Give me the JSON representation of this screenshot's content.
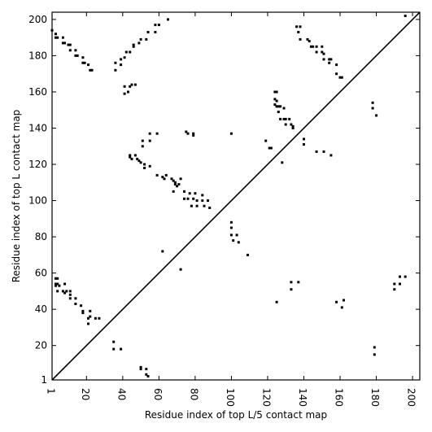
{
  "chart_data": {
    "type": "scatter",
    "xlabel": "Residue index of top L/5 contact map",
    "ylabel": "Residue index of top L contact map",
    "xlim": [
      1,
      204
    ],
    "ylim": [
      1,
      204
    ],
    "x_ticks": [
      1,
      20,
      40,
      60,
      80,
      100,
      120,
      140,
      160,
      180,
      200
    ],
    "x_tick_labels": [
      "1",
      "20",
      "40",
      "60",
      "80",
      "100",
      "120",
      "140",
      "160",
      "180",
      "200"
    ],
    "y_ticks": [
      1,
      20,
      40,
      60,
      80,
      100,
      120,
      140,
      160,
      180,
      200
    ],
    "y_tick_labels": [
      "1",
      "20",
      "40",
      "60",
      "80",
      "100",
      "120",
      "140",
      "160",
      "180",
      "200"
    ],
    "diagonal": true,
    "grid": false,
    "marker_color": "#000000",
    "series": [
      {
        "points": [
          [
            1,
            194
          ],
          [
            3,
            192
          ],
          [
            3,
            190
          ],
          [
            4,
            190
          ],
          [
            7,
            190
          ],
          [
            7,
            187
          ],
          [
            8,
            187
          ],
          [
            10,
            186
          ],
          [
            11,
            186
          ],
          [
            11,
            183
          ],
          [
            14,
            183
          ],
          [
            14,
            180
          ],
          [
            15,
            180
          ],
          [
            18,
            179
          ],
          [
            18,
            176
          ],
          [
            19,
            176
          ],
          [
            21,
            175
          ],
          [
            22,
            172
          ],
          [
            23,
            172
          ],
          [
            36,
            176
          ],
          [
            36,
            172
          ],
          [
            39,
            178
          ],
          [
            39,
            175
          ],
          [
            41,
            179
          ],
          [
            42,
            182
          ],
          [
            44,
            182
          ],
          [
            46,
            185
          ],
          [
            46,
            186
          ],
          [
            49,
            187
          ],
          [
            50,
            189
          ],
          [
            53,
            189
          ],
          [
            54,
            193
          ],
          [
            58,
            193
          ],
          [
            58,
            197
          ],
          [
            60,
            197
          ],
          [
            65,
            200
          ],
          [
            41,
            163
          ],
          [
            41,
            159
          ],
          [
            43,
            160
          ],
          [
            44,
            163
          ],
          [
            45,
            164
          ],
          [
            47,
            164
          ],
          [
            44,
            125
          ],
          [
            44,
            124
          ],
          [
            45,
            123
          ],
          [
            47,
            125
          ],
          [
            48,
            123
          ],
          [
            49,
            122
          ],
          [
            50,
            121
          ],
          [
            52,
            120
          ],
          [
            52,
            118
          ],
          [
            55,
            119
          ],
          [
            51,
            130
          ],
          [
            51,
            133
          ],
          [
            55,
            133
          ],
          [
            55,
            137
          ],
          [
            59,
            137
          ],
          [
            59,
            114
          ],
          [
            62,
            113
          ],
          [
            63,
            112
          ],
          [
            64,
            114
          ],
          [
            67,
            112
          ],
          [
            68,
            111
          ],
          [
            69,
            110
          ],
          [
            69,
            109
          ],
          [
            70,
            108
          ],
          [
            71,
            109
          ],
          [
            68,
            105
          ],
          [
            72,
            112
          ],
          [
            74,
            105
          ],
          [
            74,
            101
          ],
          [
            76,
            101
          ],
          [
            77,
            104
          ],
          [
            78,
            97
          ],
          [
            79,
            101
          ],
          [
            80,
            104
          ],
          [
            81,
            100
          ],
          [
            81,
            97
          ],
          [
            84,
            103
          ],
          [
            84,
            100
          ],
          [
            85,
            97
          ],
          [
            87,
            100
          ],
          [
            88,
            96
          ],
          [
            75,
            138
          ],
          [
            76,
            137
          ],
          [
            79,
            137
          ],
          [
            79,
            136
          ],
          [
            62,
            72
          ],
          [
            72,
            62
          ],
          [
            100,
            137
          ],
          [
            100,
            88
          ],
          [
            100,
            85
          ],
          [
            100,
            81
          ],
          [
            101,
            78
          ],
          [
            103,
            81
          ],
          [
            104,
            77
          ],
          [
            109,
            70
          ],
          [
            119,
            133
          ],
          [
            121,
            129
          ],
          [
            122,
            129
          ],
          [
            124,
            160
          ],
          [
            125,
            160
          ],
          [
            124,
            156
          ],
          [
            125,
            155
          ],
          [
            124,
            153
          ],
          [
            125,
            152
          ],
          [
            126,
            152
          ],
          [
            126,
            149
          ],
          [
            127,
            145
          ],
          [
            127,
            152
          ],
          [
            129,
            151
          ],
          [
            128,
            121
          ],
          [
            129,
            145
          ],
          [
            130,
            145
          ],
          [
            130,
            142
          ],
          [
            132,
            145
          ],
          [
            133,
            142
          ],
          [
            134,
            141
          ],
          [
            134,
            140
          ],
          [
            136,
            196
          ],
          [
            137,
            193
          ],
          [
            138,
            196
          ],
          [
            138,
            189
          ],
          [
            142,
            189
          ],
          [
            143,
            188
          ],
          [
            144,
            185
          ],
          [
            145,
            185
          ],
          [
            147,
            185
          ],
          [
            147,
            182
          ],
          [
            150,
            182
          ],
          [
            150,
            185
          ],
          [
            151,
            181
          ],
          [
            151,
            178
          ],
          [
            154,
            178
          ],
          [
            154,
            176
          ],
          [
            155,
            178
          ],
          [
            158,
            175
          ],
          [
            158,
            170
          ],
          [
            160,
            168
          ],
          [
            161,
            168
          ],
          [
            140,
            134
          ],
          [
            140,
            131
          ],
          [
            147,
            127
          ],
          [
            151,
            127
          ],
          [
            155,
            125
          ],
          [
            178,
            154
          ],
          [
            178,
            151
          ],
          [
            180,
            147
          ],
          [
            133,
            55
          ],
          [
            133,
            51
          ],
          [
            137,
            55
          ],
          [
            125,
            44
          ],
          [
            158,
            44
          ],
          [
            161,
            41
          ],
          [
            162,
            45
          ],
          [
            190,
            54
          ],
          [
            190,
            51
          ],
          [
            193,
            54
          ],
          [
            193,
            58
          ],
          [
            196,
            58
          ],
          [
            196,
            202
          ],
          [
            179,
            19
          ],
          [
            179,
            15
          ],
          [
            3,
            57
          ],
          [
            4,
            57
          ],
          [
            3,
            54
          ],
          [
            4,
            54
          ],
          [
            3,
            53
          ],
          [
            5,
            53
          ],
          [
            4,
            50
          ],
          [
            8,
            54
          ],
          [
            7,
            50
          ],
          [
            8,
            49
          ],
          [
            9,
            50
          ],
          [
            11,
            50
          ],
          [
            11,
            48
          ],
          [
            11,
            46
          ],
          [
            14,
            46
          ],
          [
            14,
            43
          ],
          [
            17,
            42
          ],
          [
            18,
            39
          ],
          [
            18,
            38
          ],
          [
            22,
            39
          ],
          [
            22,
            36
          ],
          [
            21,
            35
          ],
          [
            21,
            32
          ],
          [
            25,
            35
          ],
          [
            27,
            35
          ],
          [
            35,
            22
          ],
          [
            35,
            18
          ],
          [
            39,
            18
          ],
          [
            50,
            8
          ],
          [
            50,
            7
          ],
          [
            53,
            7
          ],
          [
            53,
            4
          ],
          [
            54,
            3
          ]
        ]
      }
    ]
  }
}
